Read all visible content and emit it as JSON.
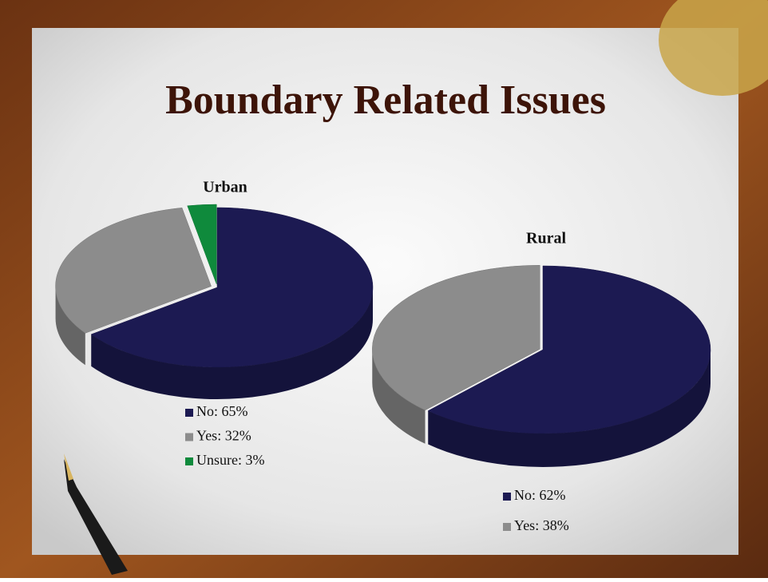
{
  "slide": {
    "title": "Boundary Related Issues"
  },
  "chart_data": [
    {
      "type": "pie",
      "title": "Urban",
      "categories": [
        "No: 65%",
        "Yes: 32%",
        "Unsure: 3%"
      ],
      "values": [
        65,
        32,
        3
      ],
      "colors": [
        "#1c1a52",
        "#8c8c8c",
        "#0f8a3c"
      ]
    },
    {
      "type": "pie",
      "title": "Rural",
      "categories": [
        "No: 62%",
        "Yes: 38%"
      ],
      "values": [
        62,
        38
      ],
      "colors": [
        "#1c1a52",
        "#8c8c8c"
      ]
    }
  ]
}
